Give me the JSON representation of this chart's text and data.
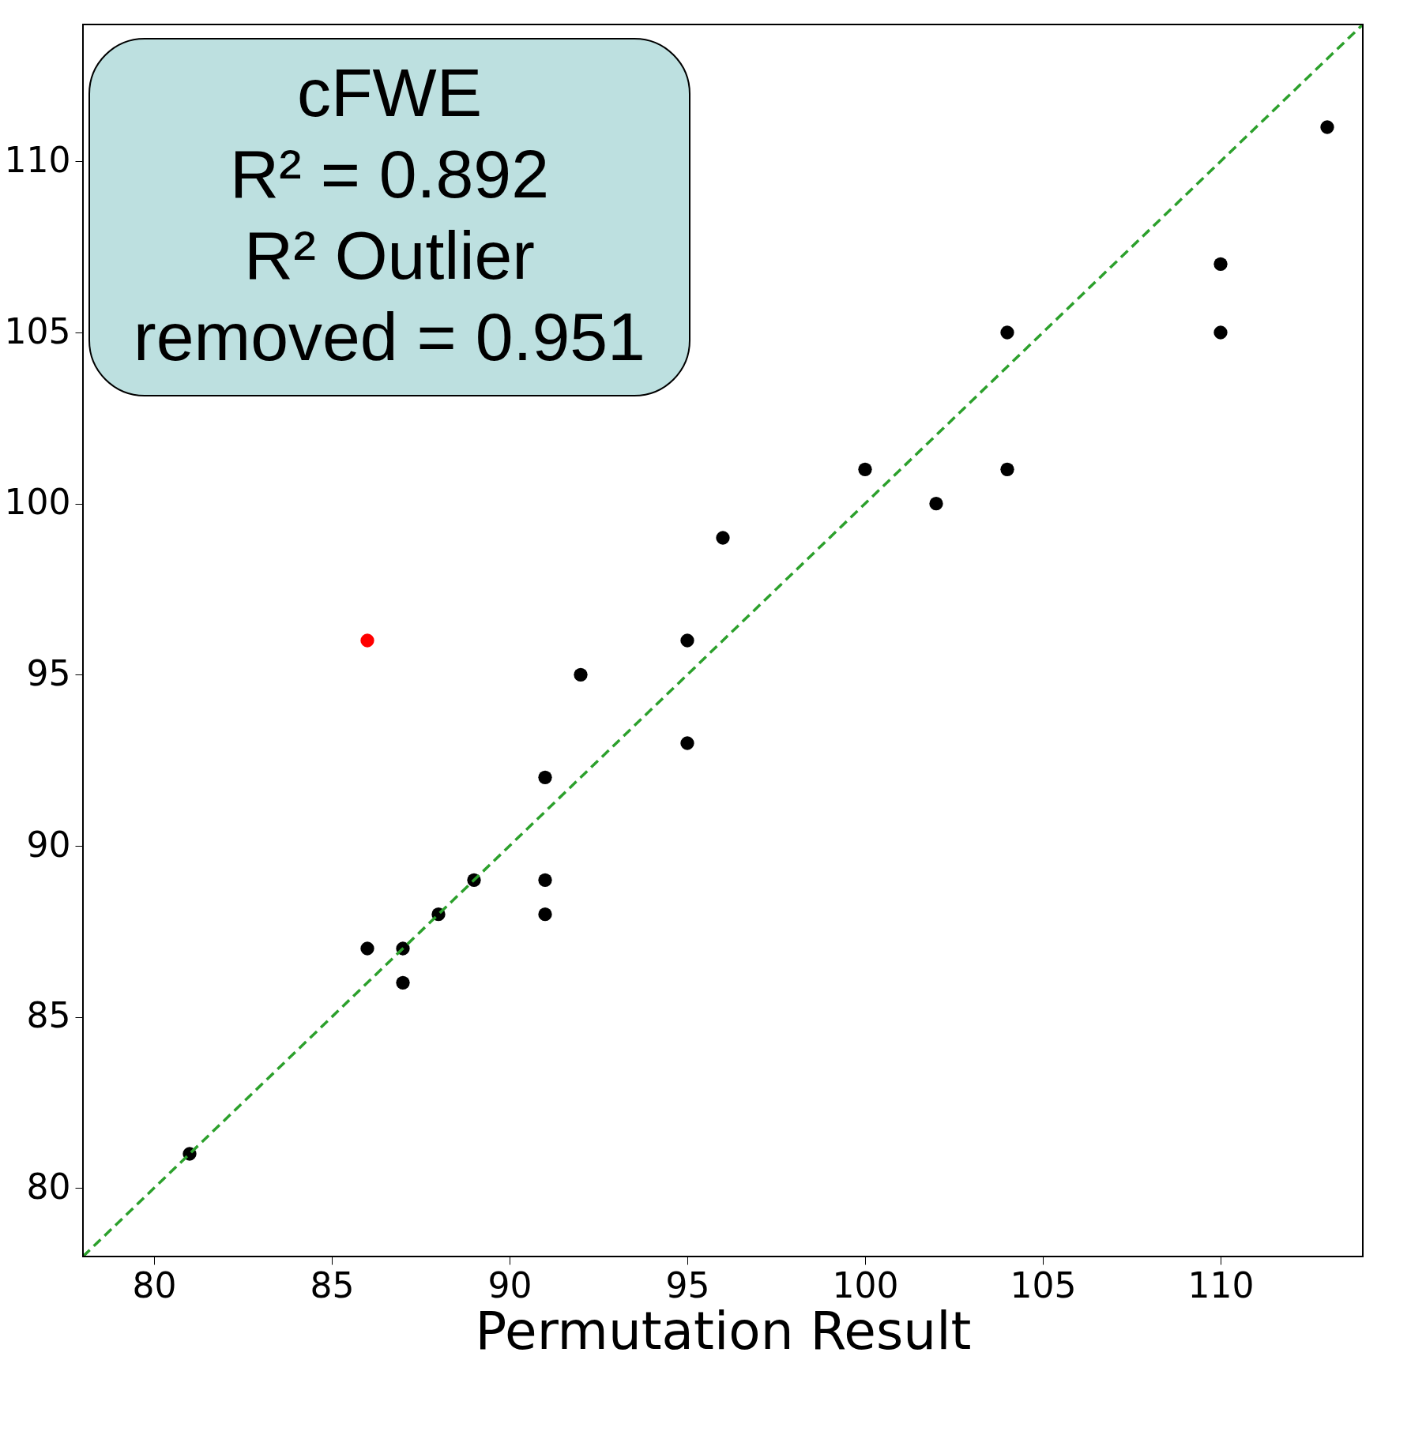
{
  "chart_data": {
    "type": "scatter",
    "xlabel": "Permutation Result",
    "annotations": [
      "cFWE",
      "R² = 0.892",
      "R² Outlier removed = 0.951"
    ],
    "xlim": [
      78,
      114
    ],
    "ylim": [
      78,
      114
    ],
    "xticks": [
      80,
      85,
      90,
      95,
      100,
      105,
      110
    ],
    "yticks": [
      80,
      85,
      90,
      95,
      100,
      105,
      110
    ],
    "grid": false,
    "marker": "circle",
    "series": [
      {
        "color": "#000000",
        "x": [
          81,
          86,
          87,
          87,
          88,
          89,
          91,
          91,
          91,
          92,
          95,
          95,
          96,
          100,
          102,
          104,
          104,
          110,
          110,
          113
        ],
        "values": [
          81,
          87,
          87,
          86,
          88,
          89,
          92,
          89,
          88,
          95,
          96,
          93,
          99,
          101,
          100,
          105,
          101,
          107,
          105,
          111
        ]
      },
      {
        "color": "#ff0000",
        "x": [
          86
        ],
        "values": [
          96
        ]
      },
      {
        "type": "line",
        "marker": "none",
        "color": "#2ca02c",
        "line_style": "dashed",
        "x": [
          78,
          114
        ],
        "values": [
          78,
          114
        ]
      }
    ]
  }
}
